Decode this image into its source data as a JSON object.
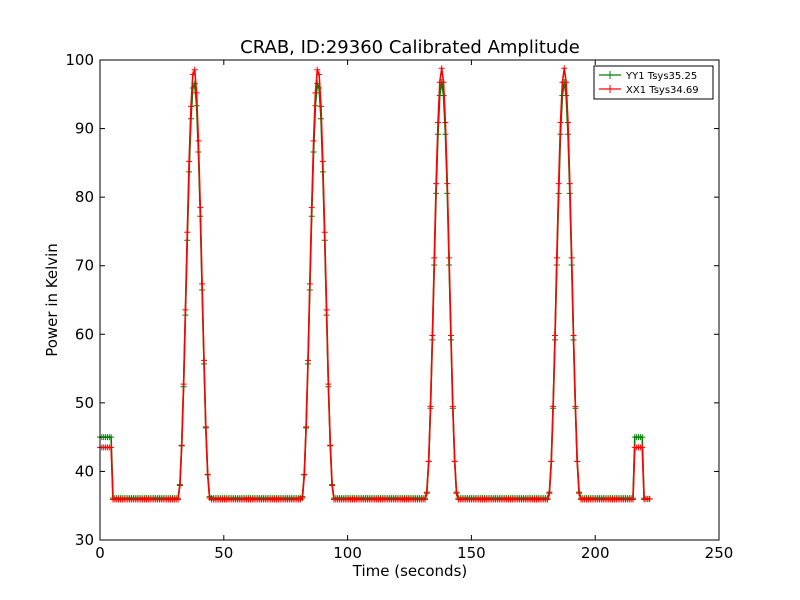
{
  "chart_data": {
    "type": "line",
    "title": "CRAB, ID:29360 Calibrated Amplitude",
    "xlabel": "Time (seconds)",
    "ylabel": "Power in Kelvin",
    "xlim": [
      0,
      250
    ],
    "ylim": [
      30,
      100
    ],
    "xticks": [
      "0",
      "50",
      "100",
      "150",
      "200",
      "250"
    ],
    "yticks": [
      "30",
      "40",
      "50",
      "60",
      "70",
      "80",
      "90",
      "100"
    ],
    "grid": false,
    "legend_position": "top-right",
    "marker": "+",
    "peaks": [
      {
        "center": 38,
        "halfwidth": 6.5
      },
      {
        "center": 88,
        "halfwidth": 6.5
      },
      {
        "center": 138,
        "halfwidth": 6.5
      },
      {
        "center": 187.5,
        "halfwidth": 6.5
      }
    ],
    "series": [
      {
        "name": "YY1 Tsys35.25",
        "color": "#008000",
        "baseline": 36.1,
        "peak": 96.8,
        "edges": [
          [
            0,
            45
          ],
          [
            4.5,
            45
          ],
          [
            5,
            36.3
          ],
          [
            215.5,
            36.3
          ],
          [
            216,
            45
          ],
          [
            219.5,
            45
          ],
          [
            220,
            36
          ],
          [
            222,
            36
          ]
        ]
      },
      {
        "name": "XX1 Tsys34.69",
        "color": "#ff0000",
        "baseline": 35.9,
        "peak": 98.8,
        "edges": [
          [
            0,
            43.5
          ],
          [
            4.5,
            43.5
          ],
          [
            5,
            35.8
          ],
          [
            215.5,
            35.8
          ],
          [
            216,
            43.5
          ],
          [
            219.5,
            43.5
          ],
          [
            220,
            36
          ],
          [
            222,
            36
          ]
        ]
      }
    ]
  }
}
